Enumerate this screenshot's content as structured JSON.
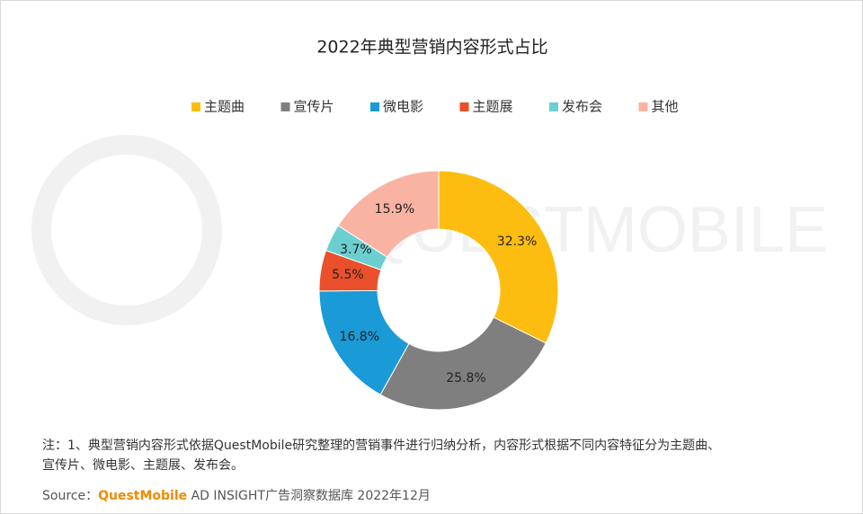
{
  "chart_data": {
    "type": "donut",
    "title": "2022年典型营销内容形式占比",
    "watermark": "QUESTMOBILE",
    "categories": [
      "主题曲",
      "宣传片",
      "微电影",
      "主题展",
      "发布会",
      "其他"
    ],
    "values": [
      32.3,
      25.8,
      16.8,
      5.5,
      3.7,
      15.9
    ],
    "value_labels": [
      "32.3%",
      "25.8%",
      "16.8%",
      "5.5%",
      "3.7%",
      "15.9%"
    ],
    "colors": [
      "#fdbd10",
      "#7f7f7f",
      "#1a9ad6",
      "#e9502b",
      "#6ccfcf",
      "#f9b3a2"
    ],
    "legend": "top"
  },
  "footer": {
    "note_lines": [
      "注：1、典型营销内容形式依据QuestMobile研究整理的营销事件进行归纳分析，内容形式根据不同内容特征分为主题曲、",
      "宣传片、微电影、主题展、发布会。"
    ],
    "source_label": "Source：",
    "source_brand": "QuestMobile",
    "source_text": " AD INSIGHT广告洞察数据库 2022年12月"
  }
}
